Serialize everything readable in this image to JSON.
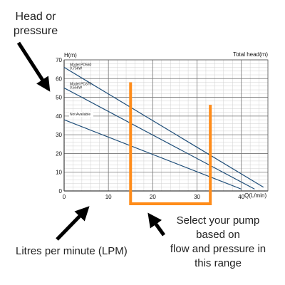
{
  "colors": {
    "curve": "#1f4e79",
    "highlight": "#ff8c1a",
    "grid_major": "#777777",
    "grid_minor": "#d0d0d0",
    "axis": "#111111",
    "arrow": "#000000",
    "text": "#222222"
  },
  "annotations": {
    "head_or_pressure": [
      "Head or",
      "pressure"
    ],
    "litres_per_minute": "Litres per minute (LPM)",
    "select_pump": [
      "Select your pump",
      "based on",
      "flow and pressure in",
      "this range"
    ]
  },
  "chart_data": {
    "type": "line",
    "title": "Total head(m)",
    "ylabel": "H(m)",
    "xlabel": "Q(L/min)",
    "xlim": [
      0,
      46
    ],
    "ylim": [
      0,
      70
    ],
    "xticks": [
      0,
      10,
      20,
      30,
      40
    ],
    "yticks": [
      0,
      10,
      20,
      30,
      40,
      50,
      60,
      70
    ],
    "grid": true,
    "series": [
      {
        "name": "Model PD560 0.75kW",
        "points": [
          [
            0,
            66
          ],
          [
            45,
            2
          ]
        ]
      },
      {
        "name": "Model PD370 0.55kW",
        "points": [
          [
            0,
            55
          ],
          [
            43,
            1
          ]
        ]
      },
      {
        "name": "Not Available",
        "points": [
          [
            0,
            38
          ],
          [
            40,
            1
          ]
        ]
      }
    ],
    "highlight_range": {
      "x": [
        15,
        33
      ],
      "y_top_left": 58,
      "y_top_right": 46
    }
  }
}
